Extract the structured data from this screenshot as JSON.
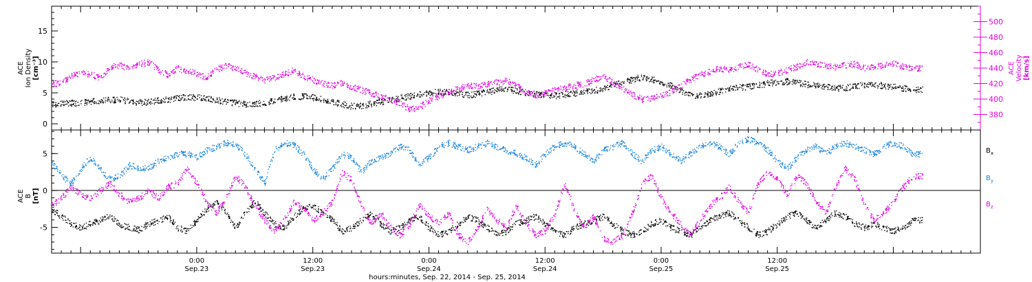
{
  "chart_data": [
    {
      "type": "scatter",
      "panel": "top",
      "ylabel_lines": [
        "ACE",
        "Ion Density",
        "[cm⁻³]"
      ],
      "ylim": [
        -1,
        19
      ],
      "yticks": [
        0,
        5,
        10,
        15
      ],
      "y2label_lines": [
        "ACE",
        "Velocity",
        "[km/s]"
      ],
      "y2lim": [
        360,
        520
      ],
      "y2ticks": [
        380,
        400,
        420,
        440,
        460,
        480,
        500
      ],
      "series": [
        {
          "axis": "left",
          "color": "#000000",
          "x": [
            0,
            1,
            2,
            3,
            4,
            5,
            6,
            7,
            8,
            9,
            10,
            11,
            12,
            13,
            14,
            15,
            16,
            17,
            18,
            19,
            20,
            21,
            22,
            23,
            24,
            25,
            26,
            27,
            28,
            29,
            30,
            31,
            32,
            33,
            34,
            35,
            36,
            37,
            38,
            39,
            40,
            41,
            42,
            43,
            44,
            45,
            46,
            47,
            48,
            49,
            50,
            51,
            52,
            53,
            54,
            55,
            56,
            57,
            58,
            59,
            60,
            61,
            62,
            63,
            64,
            65,
            66,
            67,
            68,
            69,
            70,
            71,
            72,
            73,
            74,
            75,
            76,
            77,
            78,
            79,
            80,
            81,
            82,
            83,
            84,
            85,
            86,
            87,
            88,
            89
          ],
          "y": [
            3.2,
            3.3,
            3.4,
            3.5,
            3.6,
            3.8,
            3.9,
            4.0,
            3.7,
            3.5,
            3.6,
            3.8,
            4.0,
            4.2,
            4.4,
            4.3,
            4.1,
            3.9,
            3.6,
            3.4,
            3.2,
            3.3,
            3.5,
            3.8,
            4.1,
            4.4,
            4.5,
            4.3,
            4.0,
            3.6,
            3.2,
            2.9,
            3.0,
            3.3,
            3.6,
            3.9,
            4.2,
            4.5,
            4.8,
            5.0,
            5.2,
            5.1,
            4.9,
            4.7,
            4.9,
            5.2,
            5.5,
            5.7,
            5.4,
            5.1,
            4.9,
            4.7,
            4.6,
            4.8,
            5.0,
            5.2,
            5.4,
            5.8,
            6.3,
            6.8,
            7.2,
            7.6,
            7.3,
            6.8,
            6.2,
            5.4,
            4.8,
            4.6,
            4.9,
            5.3,
            5.7,
            5.9,
            6.1,
            6.3,
            6.6,
            6.8,
            6.9,
            6.7,
            6.4,
            6.2,
            6.0,
            5.8,
            5.9,
            6.1,
            6.3,
            6.4,
            6.2,
            6.0,
            5.8,
            5.6
          ]
        },
        {
          "axis": "right",
          "color": "#e000e0",
          "x": [
            0,
            1,
            2,
            3,
            4,
            5,
            6,
            7,
            8,
            9,
            10,
            11,
            12,
            13,
            14,
            15,
            16,
            17,
            18,
            19,
            20,
            21,
            22,
            23,
            24,
            25,
            26,
            27,
            28,
            29,
            30,
            31,
            32,
            33,
            34,
            35,
            36,
            37,
            38,
            39,
            40,
            41,
            42,
            43,
            44,
            45,
            46,
            47,
            48,
            49,
            50,
            51,
            52,
            53,
            54,
            55,
            56,
            57,
            58,
            59,
            60,
            61,
            62,
            63,
            64,
            65,
            66,
            67,
            68,
            69,
            70,
            71,
            72,
            73,
            74,
            75,
            76,
            77,
            78,
            79,
            80,
            81,
            82,
            83,
            84,
            85,
            86,
            87,
            88,
            89
          ],
          "y": [
            420,
            422,
            430,
            435,
            432,
            428,
            442,
            444,
            440,
            446,
            448,
            438,
            432,
            440,
            437,
            433,
            428,
            438,
            444,
            440,
            434,
            430,
            424,
            428,
            432,
            438,
            430,
            425,
            420,
            418,
            421,
            416,
            412,
            408,
            404,
            400,
            395,
            387,
            390,
            398,
            404,
            410,
            414,
            418,
            417,
            420,
            422,
            424,
            418,
            410,
            405,
            408,
            412,
            415,
            418,
            420,
            425,
            430,
            422,
            414,
            406,
            400,
            402,
            404,
            410,
            418,
            426,
            432,
            436,
            440,
            438,
            442,
            445,
            438,
            432,
            434,
            438,
            442,
            448,
            446,
            444,
            442,
            444,
            446,
            440,
            442,
            444,
            446,
            442,
            440
          ]
        }
      ]
    },
    {
      "type": "scatter",
      "panel": "bottom",
      "ylabel_lines": [
        "ACE",
        "B",
        "[nT]"
      ],
      "ylim": [
        -8.5,
        8.2
      ],
      "yticks": [
        -5,
        0,
        5
      ],
      "zero_line": true,
      "legend_placement": "right",
      "series": [
        {
          "name": "B",
          "sub": "x",
          "color": "#000000",
          "x": [
            0,
            1,
            2,
            3,
            4,
            5,
            6,
            7,
            8,
            9,
            10,
            11,
            12,
            13,
            14,
            15,
            16,
            17,
            18,
            19,
            20,
            21,
            22,
            23,
            24,
            25,
            26,
            27,
            28,
            29,
            30,
            31,
            32,
            33,
            34,
            35,
            36,
            37,
            38,
            39,
            40,
            41,
            42,
            43,
            44,
            45,
            46,
            47,
            48,
            49,
            50,
            51,
            52,
            53,
            54,
            55,
            56,
            57,
            58,
            59,
            60,
            61,
            62,
            63,
            64,
            65,
            66,
            67,
            68,
            69,
            70,
            71,
            72,
            73,
            74,
            75,
            76,
            77,
            78,
            79,
            80,
            81,
            82,
            83,
            84,
            85,
            86,
            87,
            88,
            89
          ],
          "y": [
            -2.5,
            -3.5,
            -4.5,
            -5.0,
            -4.5,
            -4.0,
            -3.5,
            -4.5,
            -5.0,
            -5.3,
            -4.5,
            -4.0,
            -3.5,
            -5.0,
            -5.5,
            -4.0,
            -2.5,
            -1.5,
            -3.0,
            -5.0,
            -3.0,
            -1.5,
            -3.0,
            -4.5,
            -5.0,
            -3.5,
            -2.5,
            -2.0,
            -3.0,
            -4.0,
            -5.5,
            -5.0,
            -4.0,
            -3.0,
            -4.5,
            -5.5,
            -5.0,
            -4.0,
            -3.5,
            -5.0,
            -6.0,
            -5.5,
            -4.5,
            -3.5,
            -4.0,
            -5.0,
            -6.0,
            -5.5,
            -4.5,
            -4.0,
            -3.5,
            -4.5,
            -5.5,
            -6.0,
            -5.0,
            -4.5,
            -4.0,
            -3.5,
            -4.5,
            -5.5,
            -6.0,
            -5.5,
            -4.5,
            -4.0,
            -5.0,
            -5.5,
            -6.0,
            -5.0,
            -4.0,
            -3.5,
            -3.0,
            -4.0,
            -5.0,
            -6.0,
            -5.5,
            -4.5,
            -3.5,
            -3.0,
            -4.0,
            -5.0,
            -4.0,
            -3.0,
            -3.5,
            -4.5,
            -5.0,
            -4.5,
            -5.0,
            -5.5,
            -5.0,
            -4.0
          ]
        },
        {
          "name": "B",
          "sub": "y",
          "color": "#1080e0",
          "x": [
            0,
            1,
            2,
            3,
            4,
            5,
            6,
            7,
            8,
            9,
            10,
            11,
            12,
            13,
            14,
            15,
            16,
            17,
            18,
            19,
            20,
            21,
            22,
            23,
            24,
            25,
            26,
            27,
            28,
            29,
            30,
            31,
            32,
            33,
            34,
            35,
            36,
            37,
            38,
            39,
            40,
            41,
            42,
            43,
            44,
            45,
            46,
            47,
            48,
            49,
            50,
            51,
            52,
            53,
            54,
            55,
            56,
            57,
            58,
            59,
            60,
            61,
            62,
            63,
            64,
            65,
            66,
            67,
            68,
            69,
            70,
            71,
            72,
            73,
            74,
            75,
            76,
            77,
            78,
            79,
            80,
            81,
            82,
            83,
            84,
            85,
            86,
            87,
            88,
            89
          ],
          "y": [
            4.0,
            2.0,
            1.0,
            3.0,
            4.5,
            3.0,
            1.5,
            2.0,
            3.5,
            3.0,
            3.0,
            4.0,
            4.5,
            5.0,
            5.0,
            4.5,
            5.5,
            6.0,
            6.5,
            6.2,
            5.0,
            3.0,
            1.0,
            5.5,
            6.5,
            6.2,
            5.0,
            3.0,
            1.5,
            3.0,
            5.0,
            4.5,
            2.5,
            4.0,
            4.5,
            5.0,
            6.0,
            5.5,
            3.5,
            4.5,
            6.0,
            6.5,
            6.0,
            5.5,
            6.0,
            6.5,
            6.0,
            5.5,
            5.0,
            4.5,
            3.5,
            5.0,
            6.0,
            6.5,
            6.0,
            5.0,
            4.0,
            5.5,
            6.0,
            6.5,
            5.0,
            4.0,
            5.5,
            6.0,
            5.0,
            4.0,
            5.0,
            6.0,
            6.5,
            6.0,
            5.0,
            6.5,
            7.0,
            6.5,
            5.5,
            4.0,
            3.0,
            4.5,
            5.5,
            6.0,
            5.0,
            6.0,
            6.5,
            6.0,
            5.5,
            5.0,
            6.0,
            6.5,
            6.0,
            5.0
          ]
        },
        {
          "name": "B",
          "sub": "z",
          "color": "#e000e0",
          "x": [
            0,
            1,
            2,
            3,
            4,
            5,
            6,
            7,
            8,
            9,
            10,
            11,
            12,
            13,
            14,
            15,
            16,
            17,
            18,
            19,
            20,
            21,
            22,
            23,
            24,
            25,
            26,
            27,
            28,
            29,
            30,
            31,
            32,
            33,
            34,
            35,
            36,
            37,
            38,
            39,
            40,
            41,
            42,
            43,
            44,
            45,
            46,
            47,
            48,
            49,
            50,
            51,
            52,
            53,
            54,
            55,
            56,
            57,
            58,
            59,
            60,
            61,
            62,
            63,
            64,
            65,
            66,
            67,
            68,
            69,
            70,
            71,
            72,
            73,
            74,
            75,
            76,
            77,
            78,
            79,
            80,
            81,
            82,
            83,
            84,
            85,
            86,
            87,
            88,
            89
          ],
          "y": [
            -2.0,
            -1.0,
            0.5,
            -0.5,
            -1.0,
            0.0,
            1.0,
            -0.5,
            -1.5,
            -1.0,
            0.0,
            -1.0,
            0.5,
            1.0,
            3.0,
            1.0,
            -1.5,
            -3.0,
            -1.0,
            2.0,
            0.5,
            -2.0,
            -4.0,
            -5.5,
            -4.0,
            -1.5,
            -2.5,
            -4.0,
            -3.0,
            -1.5,
            2.5,
            1.5,
            -2.0,
            -4.5,
            -3.0,
            -5.0,
            -6.0,
            -4.5,
            -2.0,
            -3.5,
            -4.5,
            -3.0,
            -6.0,
            -7.0,
            -5.0,
            -2.5,
            -4.0,
            -5.0,
            -2.0,
            -4.5,
            -6.0,
            -5.5,
            -3.0,
            1.0,
            -2.5,
            -5.0,
            -3.5,
            -6.5,
            -7.0,
            -6.0,
            -3.0,
            1.0,
            2.0,
            -1.0,
            -3.0,
            -4.5,
            -6.0,
            -4.0,
            -2.0,
            -1.0,
            0.5,
            -1.5,
            -3.0,
            1.0,
            2.5,
            1.5,
            -0.5,
            2.0,
            1.0,
            -1.5,
            -3.0,
            0.5,
            3.0,
            1.5,
            -2.0,
            -4.0,
            -3.0,
            -1.5,
            0.5,
            2.0
          ]
        }
      ]
    }
  ],
  "x_axis": {
    "ticks": [
      {
        "x": 15,
        "time": "0:00",
        "date": "Sep.23"
      },
      {
        "x": 27,
        "time": "12:00",
        "date": "Sep.23"
      },
      {
        "x": 39,
        "time": "0:00",
        "date": "Sep.24"
      },
      {
        "x": 51,
        "time": "12:00",
        "date": "Sep.24"
      },
      {
        "x": 63,
        "time": "0:00",
        "date": "Sep.25"
      },
      {
        "x": 75,
        "time": "12:00",
        "date": "Sep.25"
      }
    ],
    "xlim": [
      0,
      96
    ],
    "label": "hours:minutes, Sep. 22, 2014 - Sep. 25, 2014"
  },
  "colors": {
    "black": "#000000",
    "magenta": "#e000e0",
    "blue": "#1080e0"
  }
}
